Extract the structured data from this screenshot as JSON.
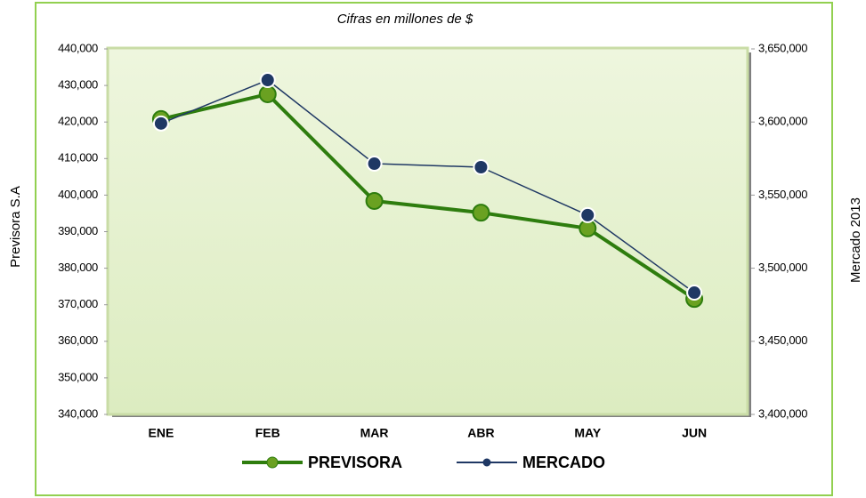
{
  "chart_data": {
    "type": "line",
    "subtitle": "Cifras en millones de $",
    "ylabel": "Previsora S.A",
    "y2label": "Mercado 2013",
    "categories": [
      "ENE",
      "FEB",
      "MAR",
      "ABR",
      "MAY",
      "JUN"
    ],
    "series": [
      {
        "name": "PREVISORA",
        "color": "#2e7d0e",
        "marker_color": "#6aa121",
        "axis": "y",
        "values": [
          420800,
          427600,
          398400,
          395200,
          390900,
          371600
        ]
      },
      {
        "name": "MERCADO",
        "color": "#1f3864",
        "marker_color": "#1f3864",
        "axis": "y2",
        "values": [
          3599000,
          3628700,
          3571500,
          3569100,
          3536300,
          3483300
        ]
      }
    ],
    "ylim": [
      340000,
      440000
    ],
    "yticks": [
      {
        "value": 340000,
        "label": "340,000"
      },
      {
        "value": 350000,
        "label": "350,000"
      },
      {
        "value": 360000,
        "label": "360,000"
      },
      {
        "value": 370000,
        "label": "370,000"
      },
      {
        "value": 380000,
        "label": "380,000"
      },
      {
        "value": 390000,
        "label": "390,000"
      },
      {
        "value": 400000,
        "label": "400,000"
      },
      {
        "value": 410000,
        "label": "410,000"
      },
      {
        "value": 420000,
        "label": "420,000"
      },
      {
        "value": 430000,
        "label": "430,000"
      },
      {
        "value": 440000,
        "label": "440,000"
      }
    ],
    "y2lim": [
      3400000,
      3650000
    ],
    "y2ticks": [
      {
        "value": 3400000,
        "label": "3,400,000"
      },
      {
        "value": 3450000,
        "label": "3,450,000"
      },
      {
        "value": 3500000,
        "label": "3,500,000"
      },
      {
        "value": 3550000,
        "label": "3,550,000"
      },
      {
        "value": 3600000,
        "label": "3,600,000"
      },
      {
        "value": 3650000,
        "label": "3,650,000"
      }
    ],
    "legend": "bottom"
  }
}
